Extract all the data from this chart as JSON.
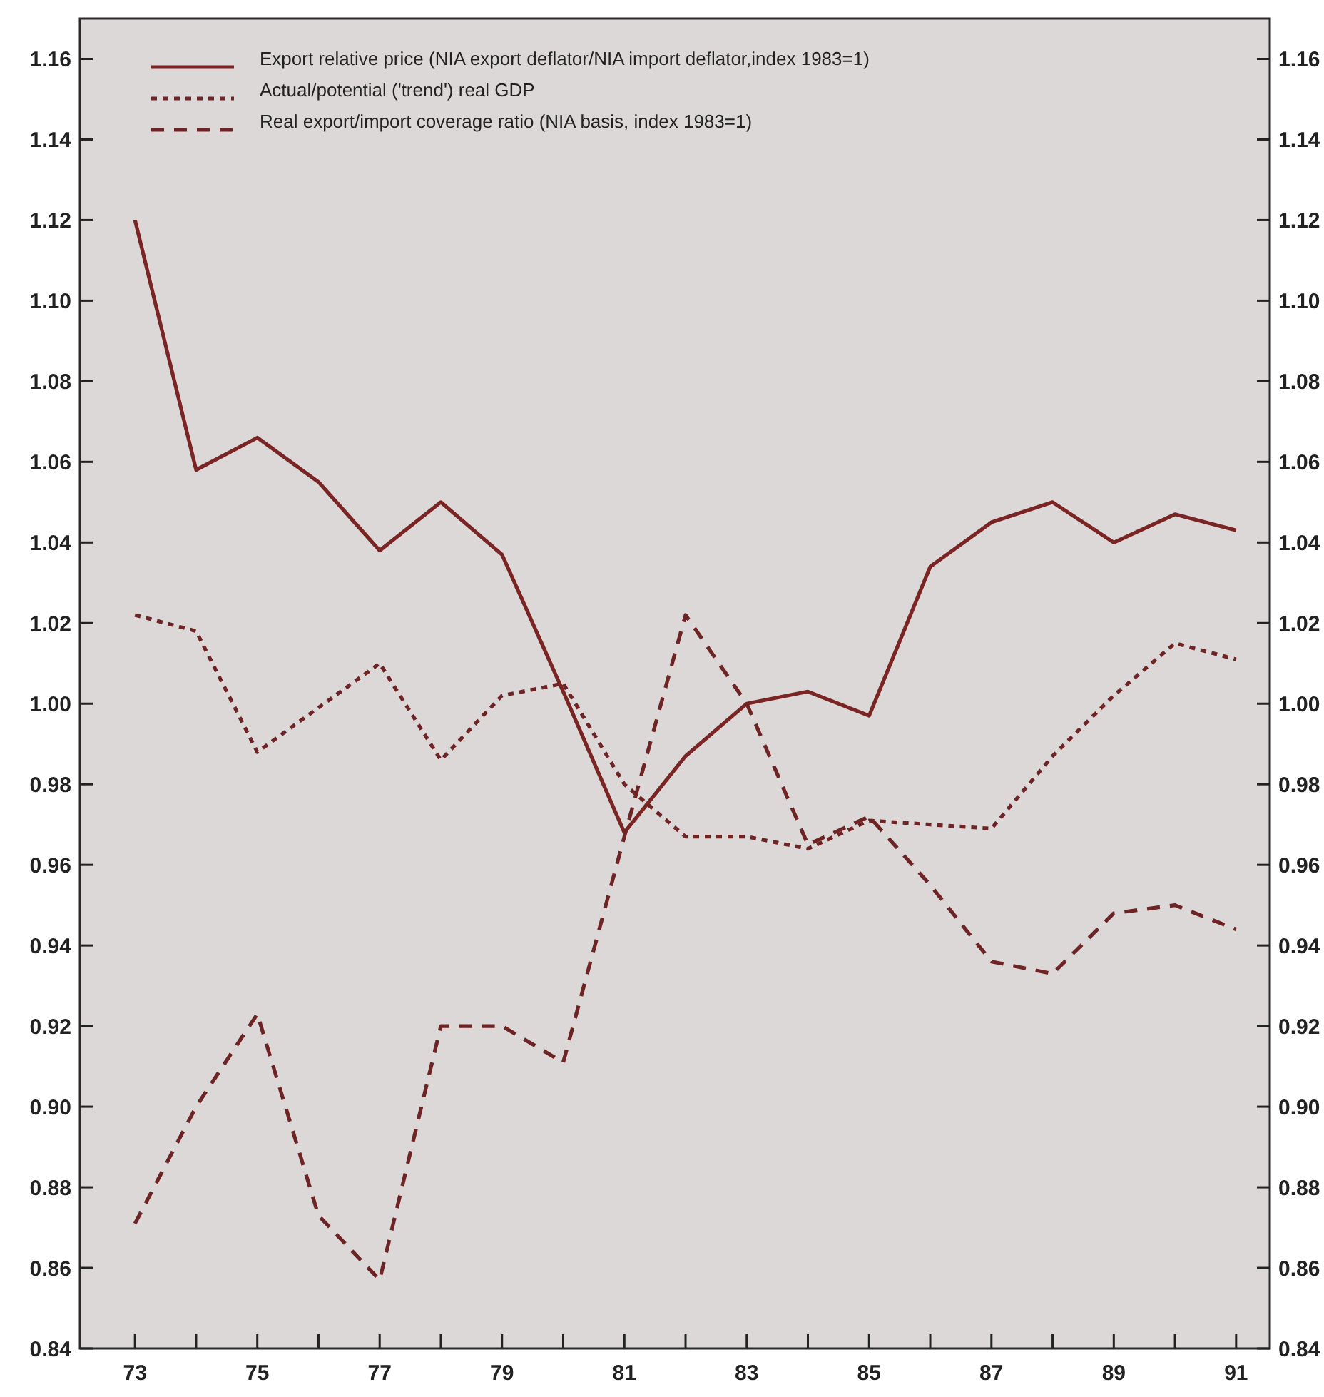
{
  "chart_data": {
    "type": "line",
    "x": [
      73,
      74,
      75,
      76,
      77,
      78,
      79,
      80,
      81,
      82,
      83,
      84,
      85,
      86,
      87,
      88,
      89,
      90,
      91
    ],
    "xlim": [
      72.1,
      91.55
    ],
    "xticks": [
      73,
      {
        "value": 74,
        "label": null
      },
      75,
      {
        "value": 76,
        "label": null
      },
      77,
      {
        "value": 78,
        "label": null
      },
      79,
      {
        "value": 80,
        "label": null
      },
      81,
      {
        "value": 82,
        "label": null
      },
      83,
      {
        "value": 84,
        "label": null
      },
      85,
      {
        "value": 86,
        "label": null
      },
      87,
      {
        "value": 88,
        "label": null
      },
      89,
      {
        "value": 90,
        "label": null
      },
      91
    ],
    "ylim": [
      0.84,
      1.17
    ],
    "yticks": [
      {
        "value": 0.84,
        "label": "0.84"
      },
      {
        "value": 0.86,
        "label": "0.86"
      },
      {
        "value": 0.88,
        "label": "0.88"
      },
      {
        "value": 0.9,
        "label": "0.90"
      },
      {
        "value": 0.92,
        "label": "0.92"
      },
      {
        "value": 0.94,
        "label": "0.94"
      },
      {
        "value": 0.96,
        "label": "0.96"
      },
      {
        "value": 0.98,
        "label": "0.98"
      },
      {
        "value": 1,
        "label": "1.00"
      },
      {
        "value": 1.02,
        "label": "1.02"
      },
      {
        "value": 1.04,
        "label": "1.04"
      },
      {
        "value": 1.06,
        "label": "1.06"
      },
      {
        "value": 1.08,
        "label": "1.08"
      },
      {
        "value": 1.1,
        "label": "1.10"
      },
      {
        "value": 1.12,
        "label": "1.12"
      },
      {
        "value": 1.14,
        "label": "1.14"
      },
      {
        "value": 1.16,
        "label": "1.16"
      }
    ],
    "y2lim": [
      0.84,
      1.17
    ],
    "y2ticks": [
      {
        "value": 0.84,
        "label": "0.84"
      },
      {
        "value": 0.86,
        "label": "0.86"
      },
      {
        "value": 0.88,
        "label": "0.88"
      },
      {
        "value": 0.9,
        "label": "0.90"
      },
      {
        "value": 0.92,
        "label": "0.92"
      },
      {
        "value": 0.94,
        "label": "0.94"
      },
      {
        "value": 0.96,
        "label": "0.96"
      },
      {
        "value": 0.98,
        "label": "0.98"
      },
      {
        "value": 1,
        "label": "1.00"
      },
      {
        "value": 1.02,
        "label": "1.02"
      },
      {
        "value": 1.04,
        "label": "1.04"
      },
      {
        "value": 1.06,
        "label": "1.06"
      },
      {
        "value": 1.08,
        "label": "1.08"
      },
      {
        "value": 1.1,
        "label": "1.10"
      },
      {
        "value": 1.12,
        "label": "1.12"
      },
      {
        "value": 1.14,
        "label": "1.14"
      },
      {
        "value": 1.16,
        "label": "1.16"
      }
    ],
    "grid": false,
    "legend": "top left",
    "series": [
      {
        "name": "Export relative price (NIA export deflator/NIA import deflator,index 1983=1)",
        "color": "#7a2424",
        "line_style": "solid",
        "values": [
          1.12,
          1.058,
          1.066,
          1.055,
          1.038,
          1.05,
          1.037,
          1.003,
          0.968,
          0.987,
          1.0,
          1.003,
          0.997,
          1.034,
          1.045,
          1.05,
          1.04,
          1.047,
          1.043
        ]
      },
      {
        "name": "Actual/potential ('trend') real GDP",
        "color": "#6e2424",
        "line_style": "dotted",
        "values": [
          1.022,
          1.018,
          0.988,
          0.999,
          1.01,
          0.986,
          1.002,
          1.005,
          0.98,
          0.967,
          0.967,
          0.964,
          0.971,
          0.97,
          0.969,
          0.987,
          1.002,
          1.015,
          1.011
        ]
      },
      {
        "name": "Real export/import coverage ratio (NIA basis, index 1983=1)",
        "color": "#6e2424",
        "line_style": "dashed",
        "values": [
          0.871,
          0.9,
          0.923,
          0.873,
          0.857,
          0.92,
          0.92,
          0.911,
          0.967,
          1.022,
          1.0,
          0.965,
          0.972,
          0.955,
          0.936,
          0.933,
          0.948,
          0.95,
          0.944
        ]
      }
    ]
  }
}
